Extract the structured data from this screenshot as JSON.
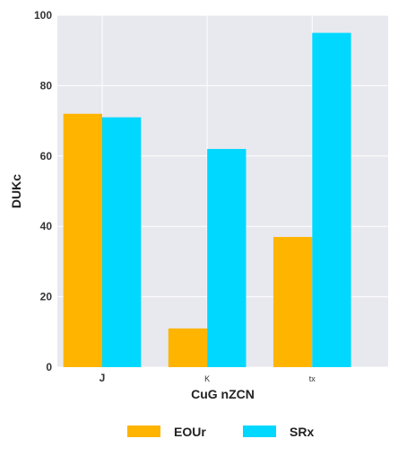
{
  "chart_data": {
    "type": "bar",
    "title": "",
    "xlabel": "CuG nZCN",
    "ylabel": "DUKc",
    "categories": [
      "J",
      "K",
      "tx"
    ],
    "ylim": [
      0,
      100
    ],
    "yticks": [
      "0",
      "20",
      "40",
      "60",
      "80",
      "100"
    ],
    "grid": true,
    "legend_position": "bottom",
    "series": [
      {
        "name": "EOUr",
        "color": "#FFB400",
        "values": [
          72,
          11,
          37
        ]
      },
      {
        "name": "SRx",
        "color": "#00D8FF",
        "values": [
          71,
          62,
          95
        ]
      }
    ]
  },
  "colors": {
    "plot_background": "#E8E8EF",
    "grid": "#FFFFFF"
  }
}
